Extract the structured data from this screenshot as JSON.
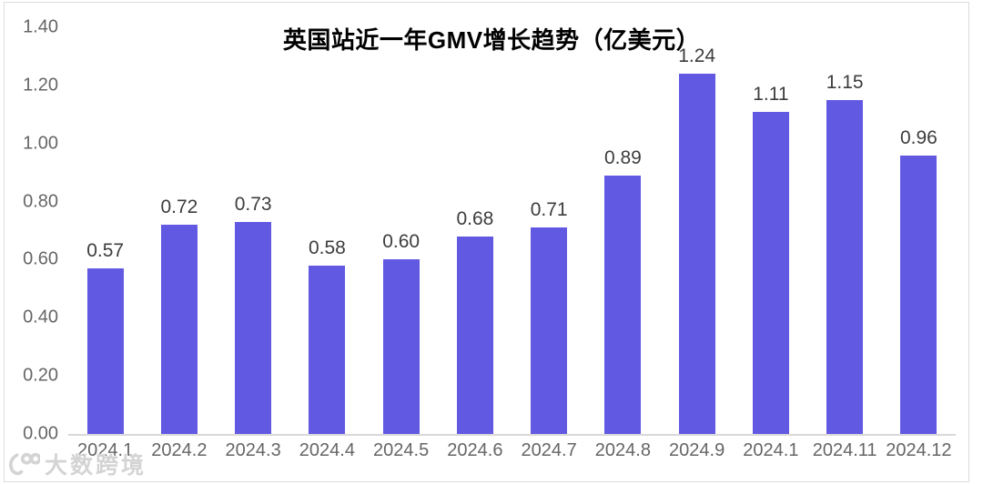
{
  "chart": {
    "watermark_text": "大数跨境"
  },
  "chart_data": {
    "type": "bar",
    "title": "英国站近一年GMV增长趋势（亿美元）",
    "categories": [
      "2024.1",
      "2024.2",
      "2024.3",
      "2024.4",
      "2024.5",
      "2024.6",
      "2024.7",
      "2024.8",
      "2024.9",
      "2024.1",
      "2024.11",
      "2024.12"
    ],
    "values": [
      0.57,
      0.72,
      0.73,
      0.58,
      0.6,
      0.68,
      0.71,
      0.89,
      1.24,
      1.11,
      1.15,
      0.96
    ],
    "value_labels": [
      "0.57",
      "0.72",
      "0.73",
      "0.58",
      "0.60",
      "0.68",
      "0.71",
      "0.89",
      "1.24",
      "1.11",
      "1.15",
      "0.96"
    ],
    "xlabel": "",
    "ylabel": "",
    "ylim": [
      0,
      1.4
    ],
    "ytick_labels": [
      "0.00",
      "0.20",
      "0.40",
      "0.60",
      "0.80",
      "1.00",
      "1.20",
      "1.40"
    ],
    "grid": false,
    "legend": "none",
    "bar_color": "#6259e3",
    "value_label_color": "#3d3d3d",
    "axis_label_color": "#666666",
    "baseline_color": "#d9d9d9"
  }
}
